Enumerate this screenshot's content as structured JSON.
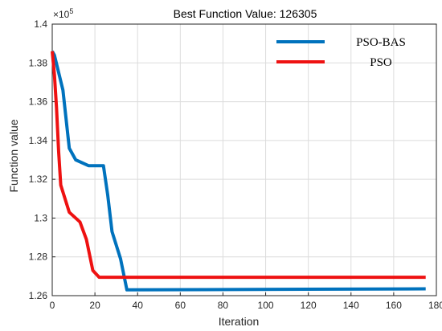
{
  "chart_data": {
    "type": "line",
    "title": "Best Function Value: 126305",
    "xlabel": "Iteration",
    "ylabel": "Function value",
    "y_exponent_base": "×10",
    "y_exponent_power": "5",
    "xlim": [
      0,
      180
    ],
    "ylim": [
      1.26,
      1.4
    ],
    "xticks": [
      0,
      20,
      40,
      60,
      80,
      100,
      120,
      140,
      160,
      180
    ],
    "yticks": [
      1.26,
      1.28,
      1.3,
      1.32,
      1.34,
      1.36,
      1.38,
      1.4
    ],
    "ytick_labels": [
      "1.26",
      "1.28",
      "1.3",
      "1.32",
      "1.34",
      "1.36",
      "1.38",
      "1.4"
    ],
    "grid": true,
    "legend_position": "top-right",
    "series": [
      {
        "name": "PSO-BAS",
        "color": "#0072BD",
        "x": [
          0,
          1,
          5,
          8,
          11,
          17,
          22,
          24,
          26,
          28,
          32,
          35,
          175
        ],
        "y": [
          1.386,
          1.384,
          1.366,
          1.336,
          1.33,
          1.327,
          1.327,
          1.327,
          1.312,
          1.293,
          1.279,
          1.263,
          1.2635
        ]
      },
      {
        "name": "PSO",
        "color": "#EE1111",
        "x": [
          0,
          1,
          2,
          3,
          4,
          8,
          13,
          16,
          19,
          22,
          175
        ],
        "y": [
          1.386,
          1.374,
          1.357,
          1.334,
          1.317,
          1.303,
          1.298,
          1.289,
          1.273,
          1.2695,
          1.2695
        ]
      }
    ]
  }
}
